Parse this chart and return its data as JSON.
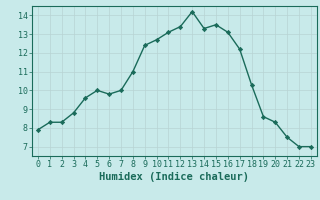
{
  "x": [
    0,
    1,
    2,
    3,
    4,
    5,
    6,
    7,
    8,
    9,
    10,
    11,
    12,
    13,
    14,
    15,
    16,
    17,
    18,
    19,
    20,
    21,
    22,
    23
  ],
  "y": [
    7.9,
    8.3,
    8.3,
    8.8,
    9.6,
    10.0,
    9.8,
    10.0,
    11.0,
    12.4,
    12.7,
    13.1,
    13.4,
    14.2,
    13.3,
    13.5,
    13.1,
    12.2,
    10.3,
    8.6,
    8.3,
    7.5,
    7.0,
    7.0
  ],
  "line_color": "#1a6b5a",
  "marker": "D",
  "marker_size": 2.2,
  "bg_color": "#c8eaea",
  "grid_color": "#b8d4d4",
  "xlabel": "Humidex (Indice chaleur)",
  "xlim": [
    -0.5,
    23.5
  ],
  "ylim": [
    6.5,
    14.5
  ],
  "yticks": [
    7,
    8,
    9,
    10,
    11,
    12,
    13,
    14
  ],
  "xticks": [
    0,
    1,
    2,
    3,
    4,
    5,
    6,
    7,
    8,
    9,
    10,
    11,
    12,
    13,
    14,
    15,
    16,
    17,
    18,
    19,
    20,
    21,
    22,
    23
  ],
  "tick_label_fontsize": 6.0,
  "xlabel_fontsize": 7.5,
  "line_width": 1.0
}
